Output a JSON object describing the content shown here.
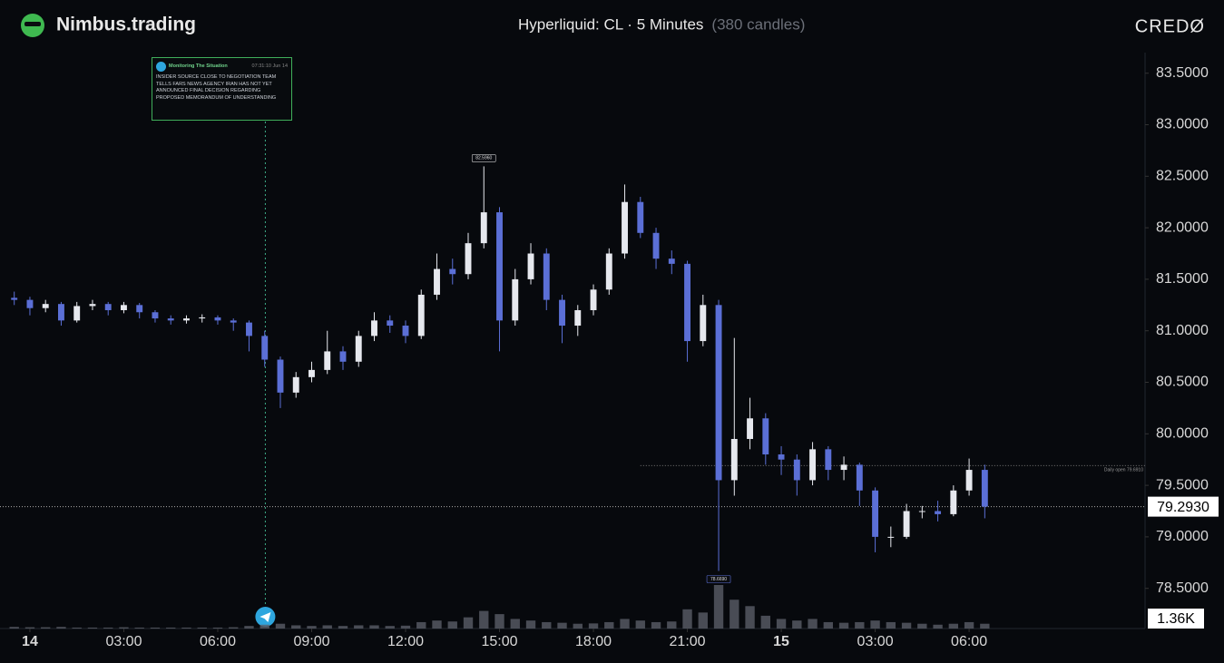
{
  "header": {
    "brand": "Nimbus.trading",
    "market": "Hyperliquid: CL · 5 Minutes",
    "candles_note": "(380 candles)",
    "logo": "CREDØ"
  },
  "news": {
    "source": "Monitoring The Situation",
    "time": "07:31:10 Jun 14",
    "text": "INSIDER SOURCE CLOSE TO NEGOTIATION TEAM TELLS FARS NEWS AGENCY IRAN HAS NOT YET ANNOUNCED FINAL DECISION REGARDING PROPOSED MEMORANDUM OF UNDERSTANDING",
    "x": 7.52
  },
  "chart_data": {
    "type": "candlestick",
    "up_color": "#e6e8ee",
    "down_color": "#5b6fd6",
    "xlim": [
      -0.81,
      35.62
    ],
    "ylim": [
      78.11,
      83.7
    ],
    "xticks": [
      {
        "value": 0,
        "label": "14"
      },
      {
        "value": 3,
        "label": "03:00"
      },
      {
        "value": 6,
        "label": "06:00"
      },
      {
        "value": 9,
        "label": "09:00"
      },
      {
        "value": 12,
        "label": "12:00"
      },
      {
        "value": 15,
        "label": "15:00"
      },
      {
        "value": 18,
        "label": "18:00"
      },
      {
        "value": 21,
        "label": "21:00"
      },
      {
        "value": 24,
        "label": "15"
      },
      {
        "value": 27,
        "label": "03:00"
      },
      {
        "value": 30,
        "label": "06:00"
      }
    ],
    "yticks": [
      {
        "value": 78.5,
        "label": "78.5000"
      },
      {
        "value": 79,
        "label": "79.0000"
      },
      {
        "value": 79.5,
        "label": "79.5000"
      },
      {
        "value": 80,
        "label": "80.0000"
      },
      {
        "value": 80.5,
        "label": "80.5000"
      },
      {
        "value": 81,
        "label": "81.0000"
      },
      {
        "value": 81.5,
        "label": "81.5000"
      },
      {
        "value": 82,
        "label": "82.0000"
      },
      {
        "value": 82.5,
        "label": "82.5000"
      },
      {
        "value": 83,
        "label": "83.0000"
      },
      {
        "value": 83.5,
        "label": "83.5000"
      }
    ],
    "x": [
      -0.5,
      0,
      0.5,
      1,
      1.5,
      2,
      2.5,
      3,
      3.5,
      4,
      4.5,
      5,
      5.5,
      6,
      6.5,
      7,
      7.5,
      8,
      8.5,
      9,
      9.5,
      10,
      10.5,
      11,
      11.5,
      12,
      12.5,
      13,
      13.5,
      14,
      14.5,
      15,
      15.5,
      16,
      16.5,
      17,
      17.5,
      18,
      18.5,
      19,
      19.5,
      20,
      20.5,
      21,
      21.5,
      22,
      22.5,
      23,
      23.5,
      24,
      24.5,
      25,
      25.5,
      26,
      26.5,
      27,
      27.5,
      28,
      28.5,
      29,
      29.5,
      30,
      30.5
    ],
    "open": [
      81.32,
      81.3,
      81.22,
      81.26,
      81.1,
      81.24,
      81.26,
      81.2,
      81.25,
      81.18,
      81.12,
      81.1,
      81.12,
      81.13,
      81.1,
      81.08,
      80.95,
      80.72,
      80.4,
      80.55,
      80.62,
      80.8,
      80.7,
      80.95,
      81.1,
      81.05,
      80.95,
      81.35,
      81.6,
      81.55,
      81.85,
      82.15,
      81.1,
      81.5,
      81.75,
      81.3,
      81.05,
      81.2,
      81.4,
      81.75,
      82.25,
      81.95,
      81.7,
      81.65,
      80.9,
      81.25,
      79.55,
      79.95,
      80.15,
      79.8,
      79.75,
      79.55,
      79.85,
      79.65,
      79.7,
      79.45,
      79.0,
      79.0,
      79.25,
      79.25,
      79.22,
      79.45,
      79.65
    ],
    "high": [
      81.38,
      81.33,
      81.3,
      81.28,
      81.28,
      81.3,
      81.28,
      81.28,
      81.27,
      81.2,
      81.15,
      81.15,
      81.16,
      81.15,
      81.12,
      81.1,
      81.0,
      80.75,
      80.6,
      80.7,
      81.0,
      80.85,
      81.0,
      81.18,
      81.15,
      81.1,
      81.4,
      81.75,
      81.7,
      81.95,
      82.596,
      82.2,
      81.6,
      81.85,
      81.8,
      81.35,
      81.25,
      81.45,
      81.8,
      82.42,
      82.3,
      82.0,
      81.78,
      81.68,
      81.35,
      81.3,
      80.93,
      80.35,
      80.2,
      79.88,
      79.8,
      79.92,
      79.88,
      79.78,
      79.72,
      79.48,
      79.1,
      79.32,
      79.3,
      79.35,
      79.5,
      79.76,
      79.7
    ],
    "low": [
      81.25,
      81.15,
      81.18,
      81.05,
      81.08,
      81.2,
      81.15,
      81.17,
      81.12,
      81.08,
      81.06,
      81.07,
      81.08,
      81.06,
      81.0,
      80.8,
      80.65,
      80.25,
      80.35,
      80.5,
      80.58,
      80.62,
      80.65,
      80.9,
      80.98,
      80.88,
      80.92,
      81.3,
      81.45,
      81.5,
      81.8,
      80.8,
      81.05,
      81.45,
      81.2,
      80.88,
      80.95,
      81.15,
      81.35,
      81.7,
      81.9,
      81.6,
      81.55,
      80.7,
      80.85,
      78.669,
      79.4,
      79.85,
      79.7,
      79.6,
      79.4,
      79.5,
      79.55,
      79.55,
      79.3,
      78.85,
      78.9,
      78.98,
      79.18,
      79.15,
      79.2,
      79.4,
      79.18
    ],
    "close": [
      81.3,
      81.22,
      81.26,
      81.1,
      81.24,
      81.26,
      81.2,
      81.25,
      81.18,
      81.12,
      81.1,
      81.12,
      81.13,
      81.1,
      81.08,
      80.95,
      80.72,
      80.4,
      80.55,
      80.62,
      80.8,
      80.7,
      80.95,
      81.1,
      81.05,
      80.95,
      81.35,
      81.6,
      81.55,
      81.85,
      82.15,
      81.1,
      81.5,
      81.75,
      81.3,
      81.05,
      81.2,
      81.4,
      81.75,
      82.25,
      81.95,
      81.7,
      81.65,
      80.9,
      81.25,
      79.55,
      79.95,
      80.15,
      79.8,
      79.75,
      79.55,
      79.85,
      79.65,
      79.7,
      79.45,
      79.0,
      79.0,
      79.25,
      79.25,
      79.22,
      79.45,
      79.65,
      79.293
    ],
    "volume": [
      0.05,
      0.04,
      0.04,
      0.05,
      0.03,
      0.03,
      0.03,
      0.04,
      0.03,
      0.03,
      0.03,
      0.03,
      0.03,
      0.03,
      0.04,
      0.08,
      0.12,
      0.15,
      0.1,
      0.08,
      0.1,
      0.08,
      0.1,
      0.1,
      0.08,
      0.09,
      0.2,
      0.25,
      0.22,
      0.35,
      0.55,
      0.45,
      0.3,
      0.25,
      0.2,
      0.18,
      0.15,
      0.16,
      0.2,
      0.3,
      0.25,
      0.2,
      0.22,
      0.6,
      0.5,
      1.36,
      0.9,
      0.7,
      0.4,
      0.3,
      0.25,
      0.3,
      0.2,
      0.18,
      0.2,
      0.25,
      0.2,
      0.18,
      0.15,
      0.12,
      0.15,
      0.2,
      0.15
    ],
    "volume_label": "1.36K",
    "last_price": {
      "value": 79.293,
      "label": "79.2930"
    },
    "daily_open": {
      "value": 79.691,
      "label": "Daily open 79.6910"
    },
    "high_label": {
      "value": 82.596,
      "label": "82.5960",
      "index": 30
    },
    "low_label": {
      "value": 78.669,
      "label": "78.6690",
      "index": 45
    }
  }
}
